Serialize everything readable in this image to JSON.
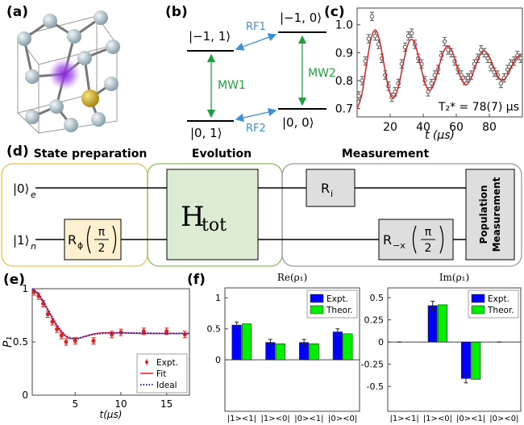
{
  "panels": {
    "a": "(a)",
    "b": "(b)",
    "c": "(c)",
    "d": "(d)",
    "e": "(e)",
    "f": "(f)"
  },
  "energy_levels": {
    "levels": [
      "|−1, 1⟩",
      "|−1, 0⟩",
      "|0, 1⟩",
      "|0, 0⟩"
    ],
    "transitions": [
      "RF1",
      "RF2",
      "MW1",
      "MW2"
    ]
  },
  "circuit": {
    "stages": [
      "State preparation",
      "Evolution",
      "Measurement"
    ],
    "inputs": [
      {
        "ket": "|0⟩",
        "sub": "e"
      },
      {
        "ket": "|1⟩",
        "sub": "n"
      }
    ],
    "gates": [
      {
        "base": "R",
        "sub": "ϕ",
        "num": "π",
        "den": "2"
      },
      {
        "base": "H",
        "sub": "tot"
      },
      {
        "base": "R",
        "sub": "i"
      },
      {
        "base": "R",
        "sub": "−x",
        "num": "π",
        "den": "2"
      },
      {
        "lines": [
          "Population",
          "Measurement"
        ]
      }
    ]
  },
  "chart_data": [
    {
      "type": "scatter",
      "xlabel": "t (μs)",
      "annotation": "T₂* = 78(7) μs",
      "xlim": [
        0,
        100
      ],
      "ylim": [
        0.67,
        1.06
      ],
      "xticks": [
        20,
        40,
        60,
        80
      ],
      "yticks": [
        0.7,
        0.8,
        0.9,
        {
          "value": 1,
          "label": "1.0"
        }
      ],
      "series": [
        {
          "mode": "markers",
          "color": "#555555",
          "x": [
            1,
            3,
            5,
            7,
            9,
            11,
            13,
            15,
            17,
            19,
            21,
            23,
            25,
            27,
            29,
            31,
            33,
            35,
            37,
            39,
            41,
            43,
            45,
            47,
            49,
            51,
            53,
            55,
            57,
            59,
            61,
            63,
            65,
            67,
            69,
            71,
            73,
            75,
            77,
            79,
            81,
            83,
            85,
            87,
            89,
            91,
            93,
            95,
            97,
            99
          ],
          "values": [
            0.745,
            0.8,
            0.87,
            0.95,
            1.03,
            0.96,
            0.93,
            0.88,
            0.82,
            0.78,
            0.74,
            0.76,
            0.79,
            0.86,
            0.92,
            0.96,
            0.97,
            0.93,
            0.88,
            0.86,
            0.8,
            0.76,
            0.79,
            0.82,
            0.84,
            0.89,
            0.94,
            0.91,
            0.9,
            0.87,
            0.84,
            0.82,
            0.8,
            0.81,
            0.82,
            0.86,
            0.88,
            0.91,
            0.9,
            0.88,
            0.85,
            0.83,
            0.82,
            0.79,
            0.81,
            0.84,
            0.86,
            0.87,
            0.89,
            0.88
          ],
          "errors": [
            0.015,
            0.015,
            0.015,
            0.015,
            0.015,
            0.015,
            0.015,
            0.015,
            0.015,
            0.015,
            0.015,
            0.015,
            0.015,
            0.015,
            0.015,
            0.015,
            0.015,
            0.015,
            0.015,
            0.015,
            0.015,
            0.015,
            0.015,
            0.015,
            0.015,
            0.015,
            0.015,
            0.015,
            0.015,
            0.015,
            0.015,
            0.015,
            0.015,
            0.015,
            0.015,
            0.015,
            0.015,
            0.015,
            0.015,
            0.015,
            0.015,
            0.015,
            0.015,
            0.015,
            0.015,
            0.015,
            0.015,
            0.015,
            0.015,
            0.015
          ]
        },
        {
          "mode": "line",
          "color": "#e02020",
          "x": [
            0,
            2.75,
            5.5,
            8.25,
            11,
            13.75,
            16.5,
            19.25,
            22,
            24.75,
            27.5,
            30.25,
            33,
            35.75,
            38.5,
            41.25,
            44,
            46.75,
            49.5,
            52.25,
            55,
            57.75,
            60.5,
            63.25,
            66,
            68.75,
            71.5,
            74.25,
            77,
            79.75,
            82.5,
            85.25,
            88,
            90.75,
            93.5,
            96.25,
            99
          ],
          "values": [
            0.7,
            0.748,
            0.85,
            0.946,
            0.982,
            0.939,
            0.85,
            0.767,
            0.737,
            0.773,
            0.85,
            0.922,
            0.948,
            0.917,
            0.85,
            0.788,
            0.765,
            0.792,
            0.85,
            0.904,
            0.924,
            0.901,
            0.85,
            0.803,
            0.785,
            0.806,
            0.85,
            0.891,
            0.906,
            0.888,
            0.85,
            0.814,
            0.801,
            0.817,
            0.85,
            0.881,
            0.892
          ]
        }
      ]
    },
    {
      "type": "line",
      "xlabel": "t(μs)",
      "ylabel": "P₁",
      "legend": "lower right",
      "xlim": [
        0.3,
        17.5
      ],
      "ylim": [
        0,
        1
      ],
      "xticks": [
        5,
        10,
        15
      ],
      "yticks": [
        0,
        0.5,
        1
      ],
      "series": [
        {
          "name": "Expt.",
          "mode": "markers",
          "color": "#e02020",
          "x": [
            0.5,
            1,
            1.5,
            2,
            2.5,
            3,
            3.5,
            4,
            5,
            7,
            9,
            10,
            12.5,
            15,
            17
          ],
          "values": [
            0.97,
            0.93,
            0.86,
            0.76,
            0.69,
            0.62,
            0.56,
            0.5,
            0.51,
            0.51,
            0.57,
            0.59,
            0.6,
            0.6,
            0.57
          ],
          "errors": [
            0.03,
            0.03,
            0.03,
            0.03,
            0.03,
            0.03,
            0.03,
            0.03,
            0.03,
            0.03,
            0.03,
            0.03,
            0.03,
            0.03,
            0.03
          ]
        },
        {
          "name": "Fit",
          "mode": "line",
          "color": "#e02020",
          "x": [
            0.3,
            1,
            2,
            3,
            4,
            5,
            6,
            7,
            8,
            10,
            12,
            14,
            17.5
          ],
          "values": [
            1,
            0.94,
            0.8,
            0.65,
            0.55,
            0.53,
            0.55,
            0.575,
            0.585,
            0.585,
            0.58,
            0.58,
            0.58
          ]
        },
        {
          "name": "Ideal",
          "mode": "line",
          "dash": "dotted",
          "color": "#2020c0",
          "x": [
            0.3,
            1,
            2,
            3,
            4,
            5,
            6,
            7,
            8,
            10,
            12,
            14,
            17.5
          ],
          "values": [
            1,
            0.95,
            0.81,
            0.66,
            0.56,
            0.53,
            0.55,
            0.57,
            0.58,
            0.585,
            0.585,
            0.58,
            0.58
          ]
        }
      ]
    },
    {
      "type": "bar",
      "title": "Re(ρ₁)",
      "legend": "upper right",
      "categories": [
        "|1><1|",
        "|1><0|",
        "|0><1|",
        "|0><0|"
      ],
      "ylim": [
        -0.83,
        1.16
      ],
      "yticks": [
        0,
        0.5,
        1
      ],
      "series": [
        {
          "name": "Expt.",
          "color": "#0000ff",
          "values": [
            0.56,
            0.28,
            0.28,
            0.45
          ],
          "errors": [
            0.05,
            0.05,
            0.05,
            0.05
          ]
        },
        {
          "name": "Theor.",
          "color": "#00ee00",
          "values": [
            0.58,
            0.26,
            0.26,
            0.42
          ]
        }
      ]
    },
    {
      "type": "bar",
      "title": "Im(ρ₁)",
      "legend": "upper right",
      "categories": [
        "|1><1|",
        "|1><0|",
        "|0><1|",
        "|0><0|"
      ],
      "ylim": [
        -0.78,
        0.61
      ],
      "yticks": [
        -0.5,
        -0.25,
        0,
        0.25,
        0.5
      ],
      "series": [
        {
          "name": "Expt.",
          "color": "#0000ff",
          "values": [
            0,
            0.41,
            -0.41,
            0
          ],
          "errors": [
            0,
            0.05,
            0.05,
            0
          ]
        },
        {
          "name": "Theor.",
          "color": "#00ee00",
          "values": [
            0,
            0.42,
            -0.42,
            0
          ]
        }
      ]
    }
  ]
}
